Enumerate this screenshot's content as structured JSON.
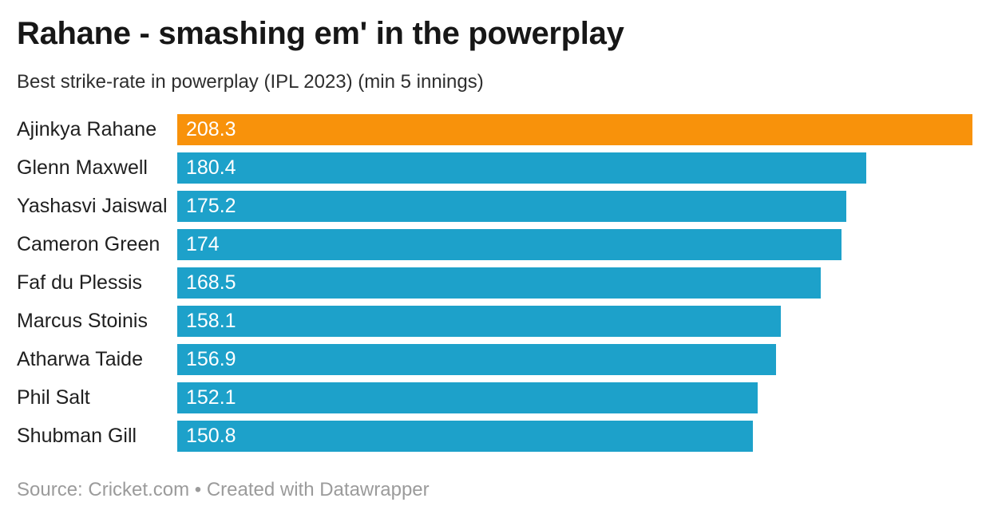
{
  "chart_data": {
    "type": "bar",
    "orientation": "horizontal",
    "title": "Rahane - smashing em' in the powerplay",
    "subtitle": "Best strike-rate in powerplay (IPL 2023) (min 5 innings)",
    "categories": [
      "Ajinkya Rahane",
      "Glenn Maxwell",
      "Yashasvi Jaiswal",
      "Cameron Green",
      "Faf du Plessis",
      "Marcus Stoinis",
      "Atharwa Taide",
      "Phil Salt",
      "Shubman Gill"
    ],
    "values": [
      208.3,
      180.4,
      175.2,
      174,
      168.5,
      158.1,
      156.9,
      152.1,
      150.8
    ],
    "value_labels": [
      "208.3",
      "180.4",
      "175.2",
      "174",
      "168.5",
      "158.1",
      "156.9",
      "152.1",
      "150.8"
    ],
    "xlim": [
      0,
      208.3
    ],
    "highlight_index": 0,
    "bar_color_default": "#1DA1CA",
    "bar_color_highlight": "#F8920B",
    "value_label_color": "#FFFFFF",
    "grid": false,
    "legend": false
  },
  "footer": {
    "source_prefix": "Source: ",
    "source_label": "Cricket.com",
    "separator": " • ",
    "attribution": "Created with Datawrapper"
  }
}
